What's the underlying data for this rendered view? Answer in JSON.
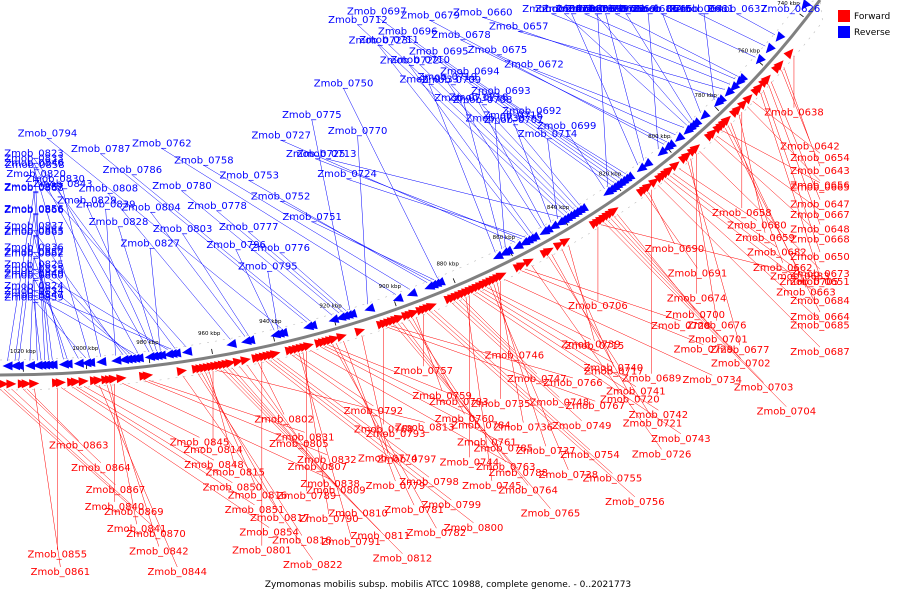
{
  "legend": {
    "forward_label": "Forward",
    "reverse_label": "Reverse",
    "forward_color": "#ff0000",
    "reverse_color": "#0000ff"
  },
  "caption": "Zymomonas mobilis subsp. mobilis ATCC 10988, complete genome. - 0..2021773",
  "backbone_color": "#808080",
  "ticks": [
    "740 kbp",
    "760 kbp",
    "780 kbp",
    "800 kbp",
    "820 kbp",
    "840 kbp",
    "860 kbp",
    "880 kbp",
    "900 kbp",
    "920 kbp",
    "940 kbp",
    "960 kbp",
    "980 kbp",
    "1000 kbp",
    "1020 kbp"
  ],
  "forward_genes": [
    "Zmob_0638",
    "Zmob_0642",
    "Zmob_0643",
    "Zmob_0647",
    "Zmob_0648",
    "Zmob_0650",
    "Zmob_0651",
    "Zmob_0654",
    "Zmob_0656",
    "Zmob_0658",
    "Zmob_0659",
    "Zmob_0662",
    "Zmob_0663",
    "Zmob_0664",
    "Zmob_0665",
    "Zmob_0667",
    "Zmob_0668",
    "Zmob_0673",
    "Zmob_0674",
    "Zmob_0676",
    "Zmob_0677",
    "Zmob_0680",
    "Zmob_0682",
    "Zmob_0683",
    "Zmob_0684",
    "Zmob_0685",
    "Zmob_0687",
    "Zmob_0689",
    "Zmob_0690",
    "Zmob_0691",
    "Zmob_0700",
    "Zmob_0701",
    "Zmob_0702",
    "Zmob_0703",
    "Zmob_0704",
    "Zmob_0705",
    "Zmob_0706",
    "Zmob_0715",
    "Zmob_0717",
    "Zmob_0720",
    "Zmob_0721",
    "Zmob_0726",
    "Zmob_0728",
    "Zmob_0729",
    "Zmob_0734",
    "Zmob_0735",
    "Zmob_0736",
    "Zmob_0737",
    "Zmob_0738",
    "Zmob_0739",
    "Zmob_0740",
    "Zmob_0741",
    "Zmob_0742",
    "Zmob_0743",
    "Zmob_0744",
    "Zmob_0745",
    "Zmob_0746",
    "Zmob_0747",
    "Zmob_0748",
    "Zmob_0749",
    "Zmob_0754",
    "Zmob_0755",
    "Zmob_0756",
    "Zmob_0757",
    "Zmob_0759",
    "Zmob_0760",
    "Zmob_0761",
    "Zmob_0763",
    "Zmob_0764",
    "Zmob_0765",
    "Zmob_0766",
    "Zmob_0767",
    "Zmob_0768",
    "Zmob_0774",
    "Zmob_0779",
    "Zmob_0781",
    "Zmob_0782",
    "Zmob_0783",
    "Zmob_0784",
    "Zmob_0785",
    "Zmob_0788",
    "Zmob_0789",
    "Zmob_0790",
    "Zmob_0791",
    "Zmob_0792",
    "Zmob_0793",
    "Zmob_0797",
    "Zmob_0798",
    "Zmob_0799",
    "Zmob_0800",
    "Zmob_0801",
    "Zmob_0802",
    "Zmob_0805",
    "Zmob_0807",
    "Zmob_0809",
    "Zmob_0810",
    "Zmob_0811",
    "Zmob_0812",
    "Zmob_0813",
    "Zmob_0814",
    "Zmob_0815",
    "Zmob_0816",
    "Zmob_0817",
    "Zmob_0818",
    "Zmob_0822",
    "Zmob_0831",
    "Zmob_0832",
    "Zmob_0838",
    "Zmob_0840",
    "Zmob_0841",
    "Zmob_0842",
    "Zmob_0844",
    "Zmob_0845",
    "Zmob_0848",
    "Zmob_0850",
    "Zmob_0851",
    "Zmob_0854",
    "Zmob_0855",
    "Zmob_0861",
    "Zmob_0863",
    "Zmob_0864",
    "Zmob_0867",
    "Zmob_0869",
    "Zmob_0870"
  ],
  "reverse_genes": [
    "Zmob_0626",
    "Zmob_0637",
    "Zmob_0641",
    "Zmob_0645",
    "Zmob_0652",
    "Zmob_0653",
    "Zmob_0655",
    "Zmob_0657",
    "Zmob_0660",
    "Zmob_0661",
    "Zmob_0666",
    "Zmob_0669",
    "Zmob_0670",
    "Zmob_0671",
    "Zmob_0672",
    "Zmob_0675",
    "Zmob_0678",
    "Zmob_0679",
    "Zmob_0681",
    "Zmob_0686",
    "Zmob_0688",
    "Zmob_0692",
    "Zmob_0693",
    "Zmob_0694",
    "Zmob_0695",
    "Zmob_0696",
    "Zmob_0697",
    "Zmob_0698",
    "Zmob_0699",
    "Zmob_0707",
    "Zmob_0708",
    "Zmob_0709",
    "Zmob_0710",
    "Zmob_0711",
    "Zmob_0712",
    "Zmob_0713",
    "Zmob_0714",
    "Zmob_0716",
    "Zmob_0718",
    "Zmob_0719",
    "Zmob_0722",
    "Zmob_0723",
    "Zmob_0724",
    "Zmob_0725",
    "Zmob_0727",
    "Zmob_0730",
    "Zmob_0731",
    "Zmob_0733",
    "Zmob_0750",
    "Zmob_0751",
    "Zmob_0752",
    "Zmob_0753",
    "Zmob_0758",
    "Zmob_0762",
    "Zmob_0770",
    "Zmob_0775",
    "Zmob_0776",
    "Zmob_0777",
    "Zmob_0778",
    "Zmob_0780",
    "Zmob_0786",
    "Zmob_0787",
    "Zmob_0794",
    "Zmob_0795",
    "Zmob_0796",
    "Zmob_0803",
    "Zmob_0804",
    "Zmob_0808",
    "Zmob_0820",
    "Zmob_0823",
    "Zmob_0824",
    "Zmob_0825",
    "Zmob_0827",
    "Zmob_0828",
    "Zmob_0829",
    "Zmob_0830",
    "Zmob_0833",
    "Zmob_0834",
    "Zmob_0835",
    "Zmob_0836",
    "Zmob_0837",
    "Zmob_0839",
    "Zmob_0843",
    "Zmob_0846",
    "Zmob_0847",
    "Zmob_0849",
    "Zmob_0852",
    "Zmob_0853",
    "Zmob_0856",
    "Zmob_0857",
    "Zmob_0858",
    "Zmob_0859",
    "Zmob_0860",
    "Zmob_0862",
    "Zmob_0865",
    "Zmob_0866",
    "Zmob_0868"
  ]
}
